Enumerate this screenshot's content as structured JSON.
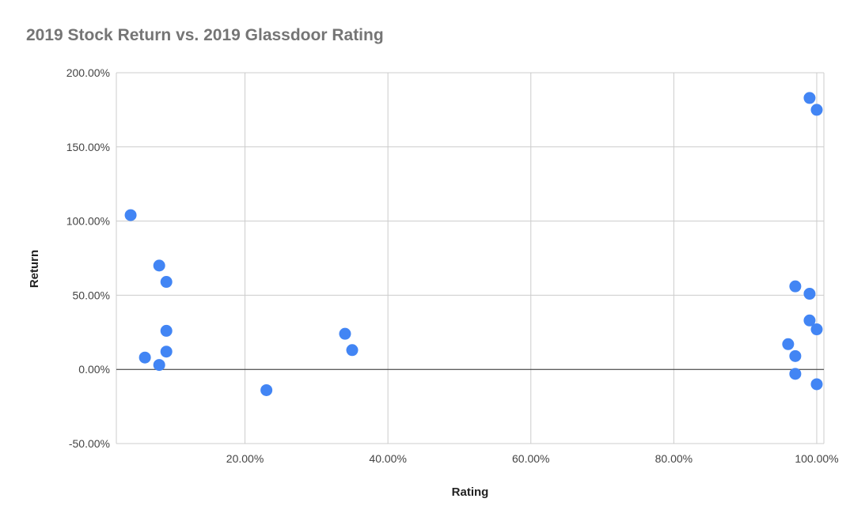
{
  "chart_data": {
    "type": "scatter",
    "title": "2019 Stock Return vs. 2019 Glassdoor Rating",
    "xlabel": "Rating",
    "ylabel": "Return",
    "xlim": [
      0.02,
      1.01
    ],
    "ylim": [
      -0.5,
      2.0
    ],
    "x_ticks": [
      0.2,
      0.4,
      0.6,
      0.8,
      1.0
    ],
    "x_tick_labels": [
      "20.00%",
      "40.00%",
      "60.00%",
      "80.00%",
      "100.00%"
    ],
    "y_ticks": [
      -0.5,
      0.0,
      0.5,
      1.0,
      1.5,
      2.0
    ],
    "y_tick_labels": [
      "-50.00%",
      "0.00%",
      "50.00%",
      "100.00%",
      "150.00%",
      "200.00%"
    ],
    "grid": true,
    "legend": "none",
    "point_color": "#4285f4",
    "points": [
      {
        "x": 0.04,
        "y": 1.04
      },
      {
        "x": 0.08,
        "y": 0.7
      },
      {
        "x": 0.09,
        "y": 0.59
      },
      {
        "x": 0.09,
        "y": 0.26
      },
      {
        "x": 0.09,
        "y": 0.12
      },
      {
        "x": 0.06,
        "y": 0.08
      },
      {
        "x": 0.08,
        "y": 0.03
      },
      {
        "x": 0.23,
        "y": -0.14
      },
      {
        "x": 0.34,
        "y": 0.24
      },
      {
        "x": 0.35,
        "y": 0.13
      },
      {
        "x": 0.99,
        "y": 1.83
      },
      {
        "x": 1.0,
        "y": 1.75
      },
      {
        "x": 0.97,
        "y": 0.56
      },
      {
        "x": 0.99,
        "y": 0.51
      },
      {
        "x": 0.99,
        "y": 0.33
      },
      {
        "x": 1.0,
        "y": 0.27
      },
      {
        "x": 0.96,
        "y": 0.17
      },
      {
        "x": 0.97,
        "y": 0.09
      },
      {
        "x": 0.97,
        "y": -0.03
      },
      {
        "x": 1.0,
        "y": -0.1
      }
    ]
  }
}
